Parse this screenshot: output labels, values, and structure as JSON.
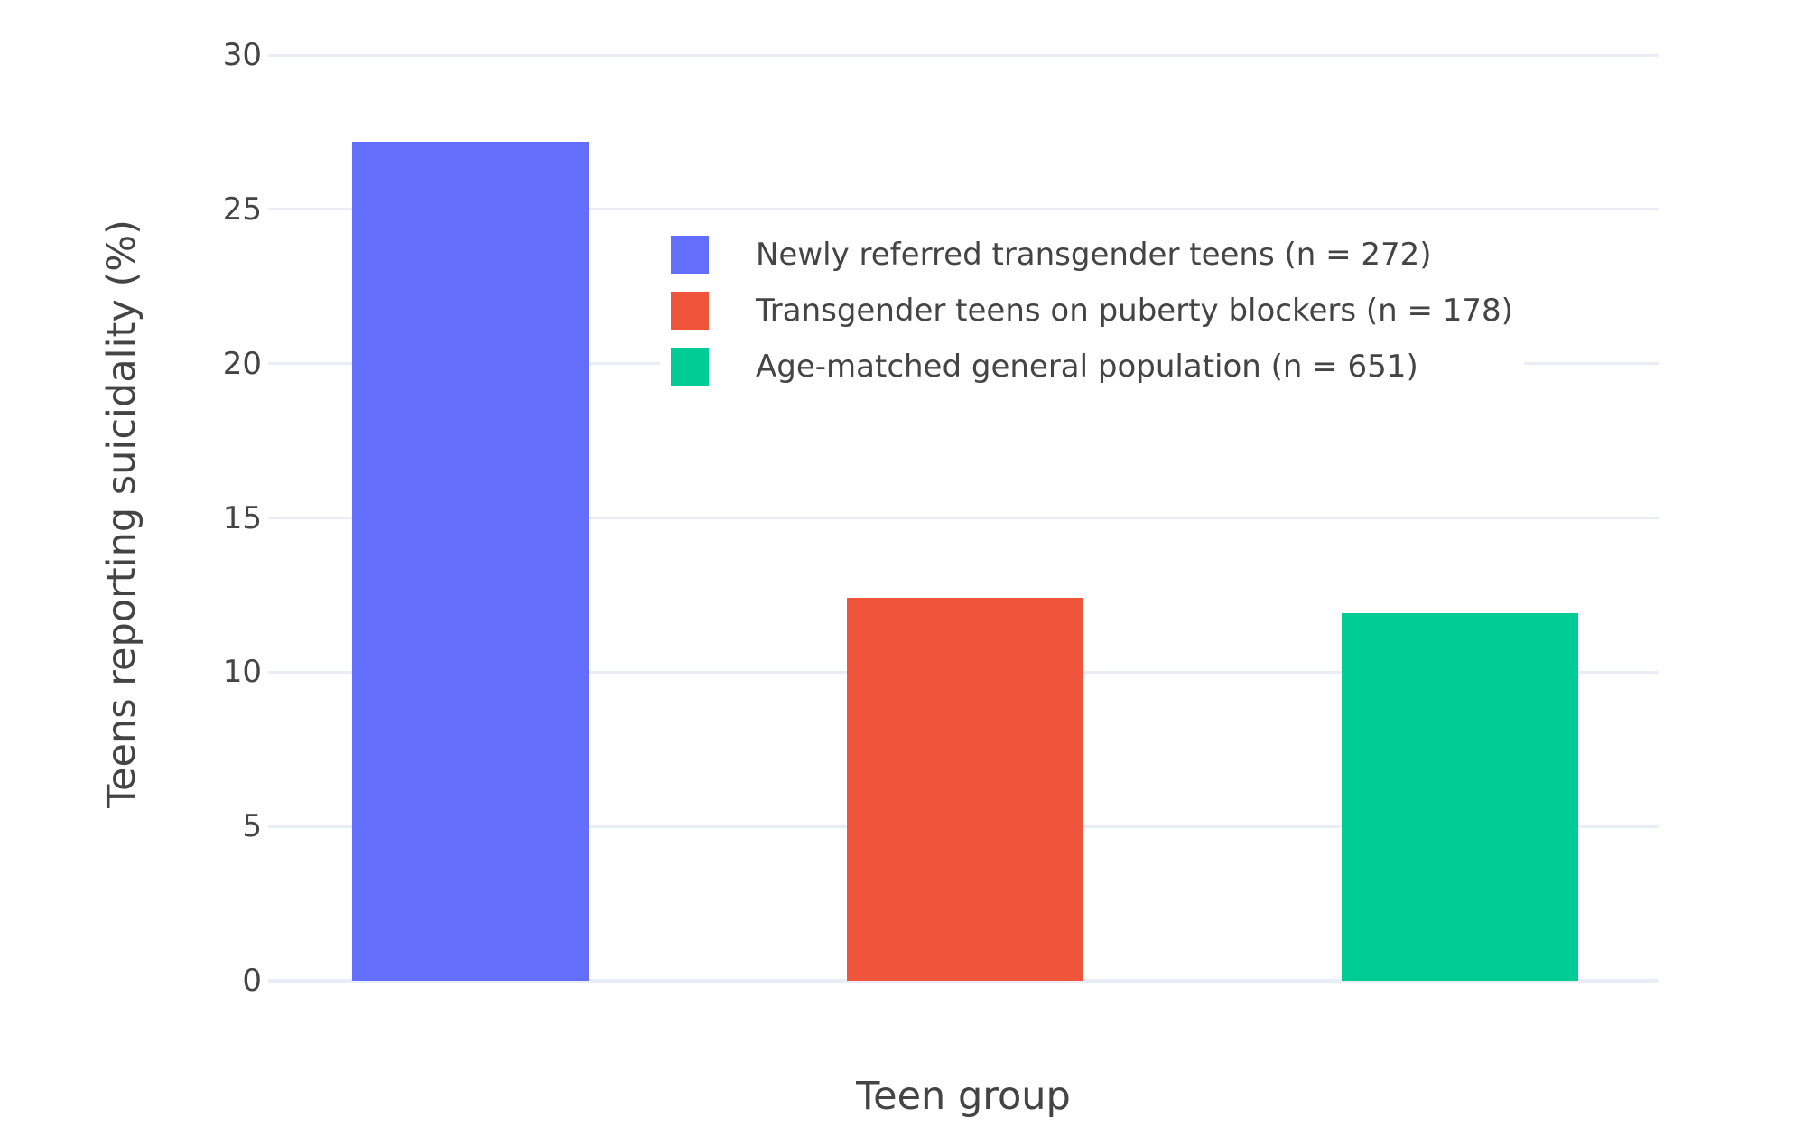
{
  "chart_data": {
    "type": "bar",
    "title": "",
    "xlabel": "Teen group",
    "ylabel": "Teens reporting suicidality (%)",
    "categories": [
      "Newly referred transgender teens (n = 272)",
      "Transgender teens on puberty blockers (n = 178)",
      "Age-matched general population (n = 651)"
    ],
    "values": [
      27.2,
      12.4,
      11.9
    ],
    "sample_sizes": [
      272,
      178,
      651
    ],
    "colors": [
      "#636efa",
      "#ef553b",
      "#00cc96"
    ],
    "ylim": [
      0,
      30
    ],
    "yticks": [
      0,
      5,
      10,
      15,
      20,
      25,
      30
    ],
    "grid": true,
    "legend_position": "inside-top-center",
    "legend": [
      {
        "label": "Newly referred transgender teens (n = 272)",
        "color": "#636efa"
      },
      {
        "label": "Transgender teens on puberty blockers (n = 178)",
        "color": "#ef553b"
      },
      {
        "label": "Age-matched general population (n = 651)",
        "color": "#00cc96"
      }
    ],
    "colors_meta": {
      "text": "#444444",
      "grid": "#e9edf5",
      "background": "#ffffff"
    }
  }
}
